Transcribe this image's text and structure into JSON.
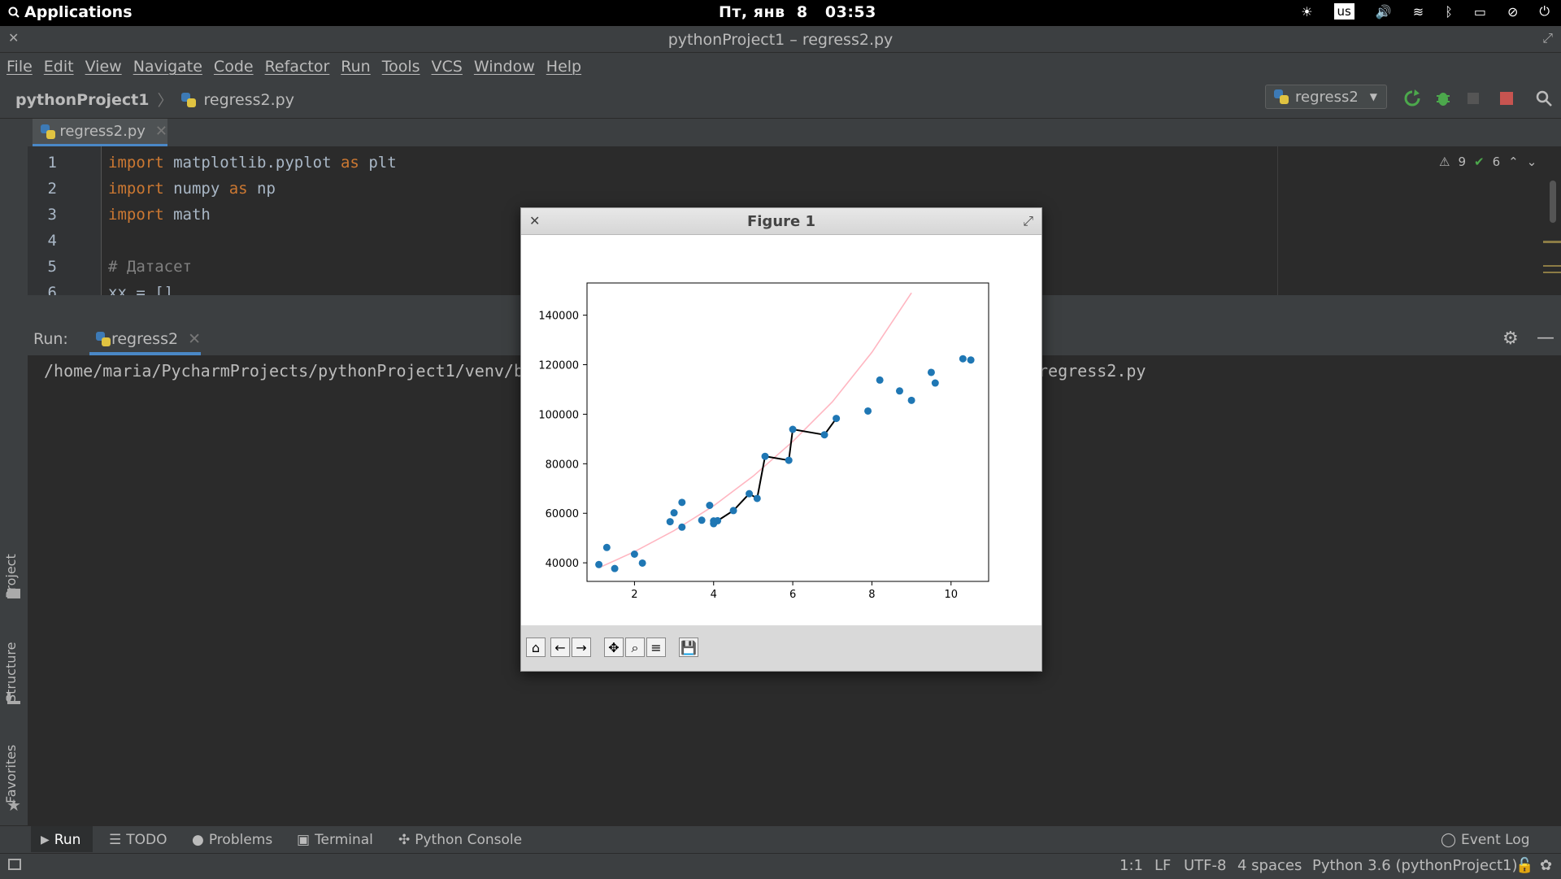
{
  "system": {
    "applications": "Applications",
    "clock": "Пт, янв  8   03:53",
    "keyboard_layout": "us"
  },
  "window": {
    "title": "pythonProject1 – regress2.py"
  },
  "menu": [
    "File",
    "Edit",
    "View",
    "Navigate",
    "Code",
    "Refactor",
    "Run",
    "Tools",
    "VCS",
    "Window",
    "Help"
  ],
  "nav": {
    "project": "pythonProject1",
    "file": "regress2.py",
    "run_config": "regress2"
  },
  "editor": {
    "tab": "regress2.py",
    "warnings": "9",
    "checks": "6",
    "lines": [
      {
        "n": "1",
        "kw": "import",
        "rest": " matplotlib.pyplot ",
        "kw2": "as",
        "rest2": " plt"
      },
      {
        "n": "2",
        "kw": "import",
        "rest": " numpy ",
        "kw2": "as",
        "rest2": " np"
      },
      {
        "n": "3",
        "kw": "import",
        "rest": " math",
        "kw2": "",
        "rest2": ""
      },
      {
        "n": "4",
        "kw": "",
        "rest": "",
        "kw2": "",
        "rest2": ""
      },
      {
        "n": "5",
        "comment": "# Датасет"
      },
      {
        "n": "6",
        "kw": "",
        "rest": "xx = []",
        "kw2": "",
        "rest2": ""
      }
    ]
  },
  "run": {
    "label": "Run:",
    "tab": "regress2",
    "console_left": "/home/maria/PycharmProjects/pythonProject1/venv/b",
    "console_right": "regress2.py"
  },
  "sidebar": {
    "project": "Project",
    "structure": "Structure",
    "favorites": "Favorites"
  },
  "bottom_tools": {
    "run": "Run",
    "todo": "TODO",
    "problems": "Problems",
    "terminal": "Terminal",
    "console": "Python Console",
    "event_log": "Event Log"
  },
  "status": {
    "pos": "1:1",
    "sep": "LF",
    "enc": "UTF-8",
    "indent": "4 spaces",
    "interp": "Python 3.6 (pythonProject1)"
  },
  "figure": {
    "title": "Figure 1"
  },
  "chart_data": {
    "type": "scatter",
    "title": "",
    "xlabel": "",
    "ylabel": "",
    "xlim": [
      0.8,
      10.95
    ],
    "ylim": [
      32500,
      153000
    ],
    "xticks": [
      2,
      4,
      6,
      8,
      10
    ],
    "yticks": [
      40000,
      60000,
      80000,
      100000,
      120000,
      140000
    ],
    "points": [
      [
        1.1,
        39300
      ],
      [
        1.3,
        46200
      ],
      [
        1.5,
        37700
      ],
      [
        2.0,
        43500
      ],
      [
        2.2,
        39900
      ],
      [
        2.9,
        56600
      ],
      [
        3.0,
        60200
      ],
      [
        3.2,
        54400
      ],
      [
        3.2,
        64400
      ],
      [
        3.7,
        57200
      ],
      [
        3.9,
        63200
      ],
      [
        4.0,
        55800
      ],
      [
        4.0,
        56900
      ],
      [
        4.1,
        57000
      ],
      [
        4.5,
        61100
      ],
      [
        4.9,
        67900
      ],
      [
        5.1,
        66000
      ],
      [
        5.3,
        83000
      ],
      [
        5.9,
        81400
      ],
      [
        6.0,
        93900
      ],
      [
        6.8,
        91700
      ],
      [
        7.1,
        98300
      ],
      [
        7.9,
        101300
      ],
      [
        8.2,
        113800
      ],
      [
        8.7,
        109400
      ],
      [
        9.0,
        105600
      ],
      [
        9.5,
        116900
      ],
      [
        9.6,
        112600
      ],
      [
        10.3,
        122400
      ],
      [
        10.5,
        121900
      ]
    ],
    "series": [
      {
        "name": "black path",
        "color": "#000000",
        "x": [
          4.0,
          4.1,
          4.5,
          4.9,
          5.1,
          5.3,
          5.9,
          6.0,
          6.8,
          7.1
        ],
        "y": [
          55800,
          57000,
          61100,
          67900,
          66000,
          83000,
          81400,
          93900,
          91700,
          98300
        ]
      },
      {
        "name": "pink curve",
        "color": "#ffb6c1",
        "x": [
          1.1,
          2.0,
          3.0,
          4.0,
          5.0,
          6.0,
          7.0,
          8.0,
          9.0
        ],
        "y": [
          38000,
          44500,
          53000,
          63000,
          75000,
          89000,
          105000,
          125000,
          149000
        ]
      }
    ],
    "marker_color": "#1f77b4"
  }
}
